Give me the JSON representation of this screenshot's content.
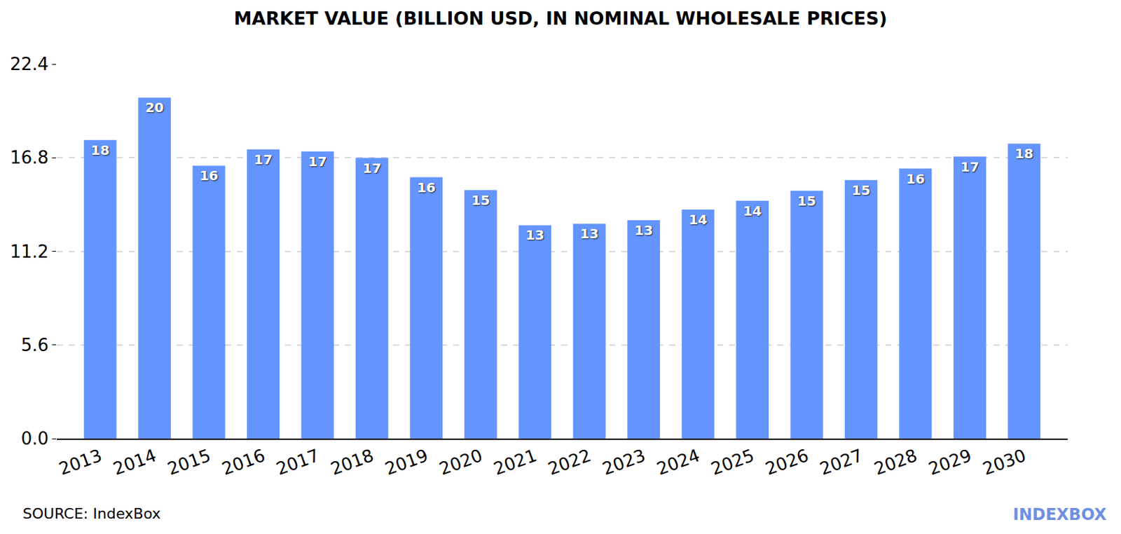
{
  "chart_data": {
    "type": "bar",
    "title": "MARKET VALUE (BILLION USD, IN NOMINAL WHOLESALE PRICES)",
    "categories": [
      "2013",
      "2014",
      "2015",
      "2016",
      "2017",
      "2018",
      "2019",
      "2020",
      "2021",
      "2022",
      "2023",
      "2024",
      "2025",
      "2026",
      "2027",
      "2028",
      "2029",
      "2030"
    ],
    "values": [
      17.86,
      20.39,
      16.32,
      17.3,
      17.17,
      16.79,
      15.63,
      14.86,
      12.76,
      12.85,
      13.06,
      13.7,
      14.22,
      14.82,
      15.46,
      16.15,
      16.87,
      17.64
    ],
    "value_labels": [
      "18",
      "20",
      "16",
      "17",
      "17",
      "17",
      "16",
      "15",
      "13",
      "13",
      "13",
      "14",
      "14",
      "15",
      "15",
      "16",
      "17",
      "18"
    ],
    "data_labels": true,
    "color": "#6495ff",
    "ylim": [
      0,
      22.4
    ],
    "yticks": [
      {
        "value": 0,
        "label": "0.0"
      },
      5.6,
      11.2,
      16.8,
      22.4
    ],
    "grid": true,
    "source": "SOURCE: IndexBox",
    "logo": "INDEXBOX"
  }
}
